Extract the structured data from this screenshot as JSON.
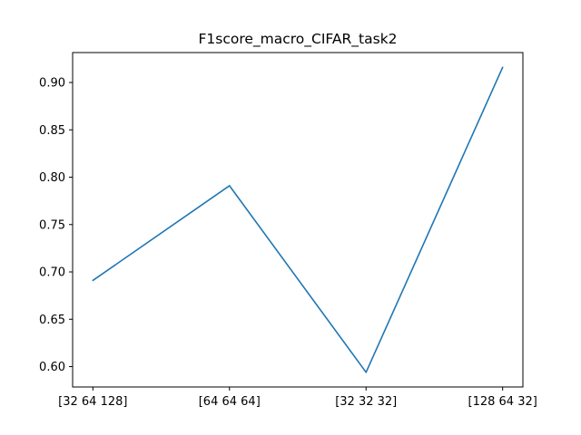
{
  "chart_data": {
    "type": "line",
    "title": "F1score_macro_CIFAR_task2",
    "xlabel": "",
    "ylabel": "",
    "categories": [
      "[32 64 128]",
      "[64 64 64]",
      "[32 32 32]",
      "[128 64 32]"
    ],
    "series": [
      {
        "values": [
          0.691,
          0.791,
          0.594,
          0.916
        ],
        "color": "#1f77b4"
      }
    ],
    "ylim": [
      0.5785,
      0.9316
    ],
    "yticks": [
      0.6,
      0.65,
      0.7,
      0.75,
      0.8,
      0.85,
      0.9
    ],
    "ytick_labels": [
      "0.60",
      "0.65",
      "0.70",
      "0.75",
      "0.80",
      "0.85",
      "0.90"
    ],
    "grid": false,
    "legend": "none"
  }
}
